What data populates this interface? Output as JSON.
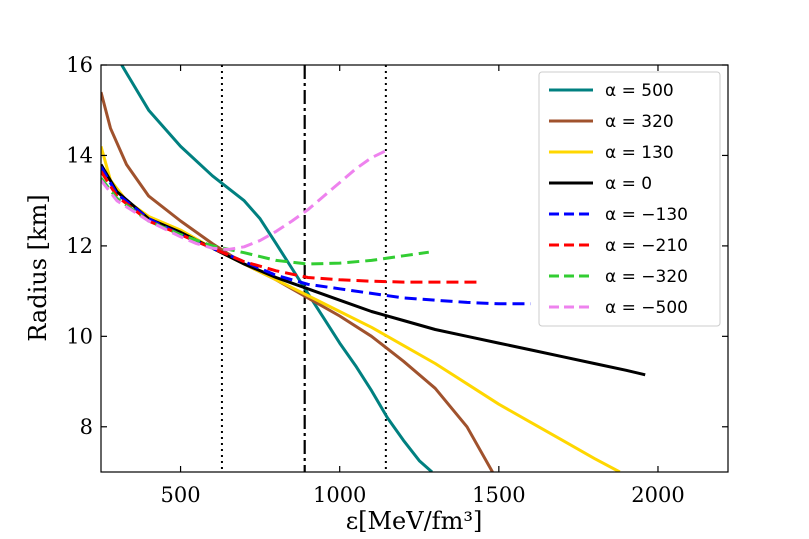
{
  "chart_data": {
    "type": "line",
    "xlabel": "ε[MeV/fm³]",
    "ylabel": "Radius [km]",
    "xlim": [
      250,
      2220
    ],
    "ylim": [
      7,
      16
    ],
    "xticks": [
      500,
      1000,
      1500,
      2000
    ],
    "yticks": [
      8,
      10,
      12,
      14,
      16
    ],
    "xtick_labels": [
      "500",
      "1000",
      "1500",
      "2000"
    ],
    "ytick_labels": [
      "8",
      "10",
      "12",
      "14",
      "16"
    ],
    "grid": false,
    "legend_position": "top-right",
    "vlines": [
      {
        "x": 630,
        "style": "dotted"
      },
      {
        "x": 890,
        "style": "dashdot"
      },
      {
        "x": 1145,
        "style": "dotted"
      }
    ],
    "series": [
      {
        "name": "α = 500",
        "color": "#008080",
        "style": "solid",
        "points": [
          [
            315,
            16.0
          ],
          [
            400,
            15.0
          ],
          [
            500,
            14.2
          ],
          [
            600,
            13.55
          ],
          [
            700,
            13.0
          ],
          [
            750,
            12.6
          ],
          [
            800,
            12.05
          ],
          [
            850,
            11.5
          ],
          [
            900,
            10.95
          ],
          [
            950,
            10.4
          ],
          [
            1000,
            9.85
          ],
          [
            1050,
            9.35
          ],
          [
            1100,
            8.8
          ],
          [
            1150,
            8.2
          ],
          [
            1200,
            7.7
          ],
          [
            1250,
            7.25
          ],
          [
            1290,
            7.0
          ]
        ]
      },
      {
        "name": "α = 320",
        "color": "#a0522d",
        "style": "solid",
        "points": [
          [
            250,
            15.4
          ],
          [
            280,
            14.6
          ],
          [
            330,
            13.8
          ],
          [
            400,
            13.1
          ],
          [
            500,
            12.55
          ],
          [
            600,
            12.05
          ],
          [
            700,
            11.6
          ],
          [
            800,
            11.25
          ],
          [
            900,
            10.85
          ],
          [
            1000,
            10.45
          ],
          [
            1100,
            10.0
          ],
          [
            1200,
            9.45
          ],
          [
            1300,
            8.85
          ],
          [
            1400,
            8.0
          ],
          [
            1480,
            7.0
          ]
        ]
      },
      {
        "name": "α = 130",
        "color": "#ffd700",
        "style": "solid",
        "points": [
          [
            250,
            14.2
          ],
          [
            280,
            13.45
          ],
          [
            330,
            13.0
          ],
          [
            400,
            12.65
          ],
          [
            500,
            12.35
          ],
          [
            600,
            11.95
          ],
          [
            700,
            11.6
          ],
          [
            800,
            11.25
          ],
          [
            900,
            10.9
          ],
          [
            1000,
            10.55
          ],
          [
            1100,
            10.2
          ],
          [
            1200,
            9.8
          ],
          [
            1300,
            9.4
          ],
          [
            1400,
            8.95
          ],
          [
            1500,
            8.5
          ],
          [
            1600,
            8.1
          ],
          [
            1700,
            7.7
          ],
          [
            1800,
            7.3
          ],
          [
            1880,
            7.0
          ]
        ]
      },
      {
        "name": "α = 0",
        "color": "#000000",
        "style": "solid",
        "points": [
          [
            250,
            13.8
          ],
          [
            300,
            13.2
          ],
          [
            400,
            12.6
          ],
          [
            500,
            12.3
          ],
          [
            600,
            11.95
          ],
          [
            700,
            11.6
          ],
          [
            800,
            11.3
          ],
          [
            900,
            11.05
          ],
          [
            1000,
            10.8
          ],
          [
            1100,
            10.55
          ],
          [
            1200,
            10.35
          ],
          [
            1300,
            10.15
          ],
          [
            1400,
            10.0
          ],
          [
            1500,
            9.85
          ],
          [
            1600,
            9.7
          ],
          [
            1700,
            9.55
          ],
          [
            1800,
            9.4
          ],
          [
            1900,
            9.25
          ],
          [
            1960,
            9.15
          ]
        ]
      },
      {
        "name": "α = −130",
        "color": "#0000ff",
        "style": "dashed",
        "points": [
          [
            250,
            13.75
          ],
          [
            300,
            13.15
          ],
          [
            400,
            12.6
          ],
          [
            500,
            12.25
          ],
          [
            600,
            11.95
          ],
          [
            700,
            11.65
          ],
          [
            800,
            11.35
          ],
          [
            900,
            11.15
          ],
          [
            1000,
            11.05
          ],
          [
            1100,
            10.95
          ],
          [
            1200,
            10.85
          ],
          [
            1300,
            10.8
          ],
          [
            1400,
            10.75
          ],
          [
            1500,
            10.72
          ],
          [
            1600,
            10.72
          ]
        ]
      },
      {
        "name": "α = −210",
        "color": "#ff0000",
        "style": "dashed",
        "points": [
          [
            250,
            13.65
          ],
          [
            300,
            13.1
          ],
          [
            400,
            12.55
          ],
          [
            500,
            12.25
          ],
          [
            600,
            11.95
          ],
          [
            700,
            11.65
          ],
          [
            800,
            11.45
          ],
          [
            900,
            11.3
          ],
          [
            1000,
            11.25
          ],
          [
            1100,
            11.22
          ],
          [
            1200,
            11.2
          ],
          [
            1300,
            11.2
          ],
          [
            1430,
            11.2
          ]
        ]
      },
      {
        "name": "α = −320",
        "color": "#32cd32",
        "style": "dashed",
        "points": [
          [
            250,
            13.5
          ],
          [
            300,
            13.05
          ],
          [
            400,
            12.55
          ],
          [
            500,
            12.25
          ],
          [
            600,
            12.0
          ],
          [
            700,
            11.85
          ],
          [
            800,
            11.68
          ],
          [
            900,
            11.6
          ],
          [
            1000,
            11.62
          ],
          [
            1100,
            11.68
          ],
          [
            1200,
            11.78
          ],
          [
            1280,
            11.86
          ]
        ]
      },
      {
        "name": "α = −500",
        "color": "#ee82ee",
        "style": "dashed",
        "points": [
          [
            250,
            13.45
          ],
          [
            300,
            13.0
          ],
          [
            400,
            12.55
          ],
          [
            500,
            12.2
          ],
          [
            550,
            12.05
          ],
          [
            600,
            11.95
          ],
          [
            650,
            11.92
          ],
          [
            700,
            11.98
          ],
          [
            750,
            12.12
          ],
          [
            800,
            12.32
          ],
          [
            850,
            12.55
          ],
          [
            900,
            12.8
          ],
          [
            950,
            13.1
          ],
          [
            1000,
            13.4
          ],
          [
            1050,
            13.7
          ],
          [
            1100,
            13.95
          ],
          [
            1150,
            14.12
          ]
        ]
      }
    ]
  }
}
